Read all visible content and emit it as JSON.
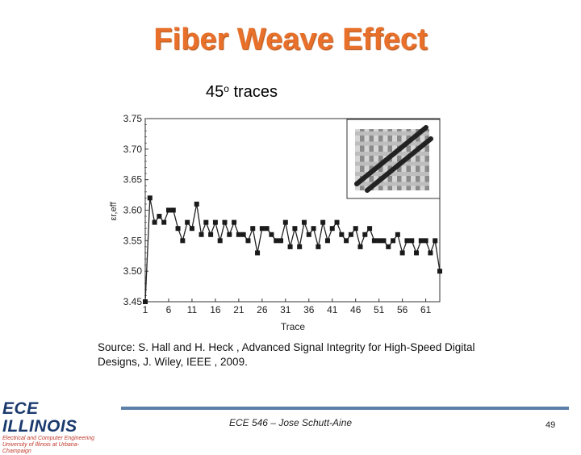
{
  "slide": {
    "title": "Fiber Weave Effect",
    "subtitle_main": "45",
    "subtitle_deg": "o",
    "subtitle_rest": " traces",
    "source_line1": "Source: S. Hall and H. Heck , Advanced Signal Integrity for High-Speed Digital",
    "source_line2": "Designs, J. Wiley, IEEE , 2009.",
    "logo_text": "ECE ILLINOIS",
    "logo_sub1": "Electrical and Computer Engineering",
    "logo_sub2": "University of Illinois at Urbana-Champaign",
    "footer_text": "ECE 546 – Jose Schutt-Aine",
    "page_number": "49"
  },
  "chart_data": {
    "type": "line",
    "xlabel": "Trace",
    "ylabel": "εr,eff",
    "xlim": [
      1,
      64
    ],
    "ylim": [
      3.45,
      3.75
    ],
    "x_ticks": [
      1,
      6,
      11,
      16,
      21,
      26,
      31,
      36,
      41,
      46,
      51,
      56,
      61
    ],
    "y_ticks": [
      "3.75",
      "3.70",
      "3.65",
      "3.60",
      "3.55",
      "3.50",
      "3.45"
    ],
    "grid": false,
    "marker": "square",
    "inset": "photo of glass fiber weave with two diagonal traces at 45 degrees",
    "x": [
      1,
      2,
      3,
      4,
      5,
      6,
      7,
      8,
      9,
      10,
      11,
      12,
      13,
      14,
      15,
      16,
      17,
      18,
      19,
      20,
      21,
      22,
      23,
      24,
      25,
      26,
      27,
      28,
      29,
      30,
      31,
      32,
      33,
      34,
      35,
      36,
      37,
      38,
      39,
      40,
      41,
      42,
      43,
      44,
      45,
      46,
      47,
      48,
      49,
      50,
      51,
      52,
      53,
      54,
      55,
      56,
      57,
      58,
      59,
      60,
      61,
      62,
      63,
      64
    ],
    "values": [
      3.45,
      3.62,
      3.58,
      3.59,
      3.58,
      3.6,
      3.6,
      3.57,
      3.55,
      3.58,
      3.57,
      3.61,
      3.56,
      3.58,
      3.56,
      3.58,
      3.55,
      3.58,
      3.56,
      3.58,
      3.56,
      3.56,
      3.55,
      3.57,
      3.53,
      3.57,
      3.57,
      3.56,
      3.55,
      3.55,
      3.58,
      3.54,
      3.57,
      3.54,
      3.58,
      3.56,
      3.57,
      3.54,
      3.58,
      3.55,
      3.57,
      3.58,
      3.56,
      3.55,
      3.56,
      3.57,
      3.54,
      3.56,
      3.57,
      3.55,
      3.55,
      3.55,
      3.54,
      3.55,
      3.56,
      3.53,
      3.55,
      3.55,
      3.53,
      3.55,
      3.55,
      3.53,
      3.55,
      3.5
    ]
  }
}
